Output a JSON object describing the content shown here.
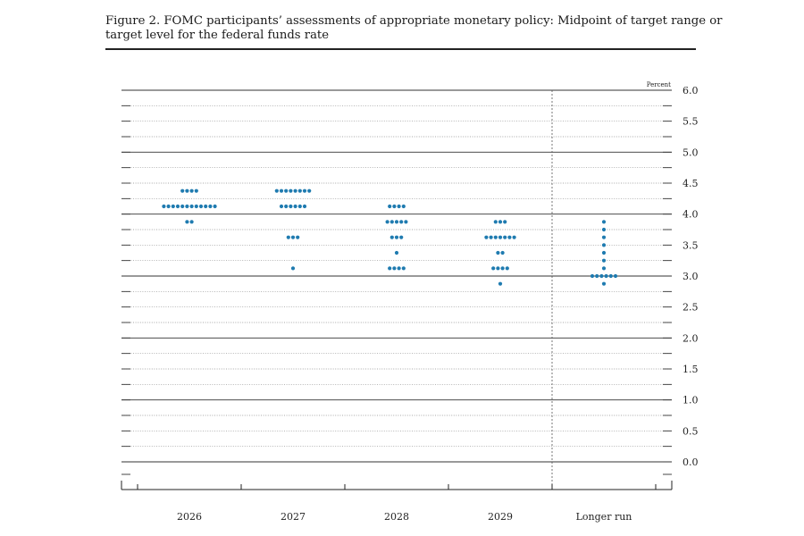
{
  "title": "Figure 2. FOMC participants’ assessments of appropriate monetary policy: Midpoint of target range or target level for the federal funds rate",
  "chart_data": {
    "type": "scatter",
    "title": "Figure 2. FOMC participants’ assessments of appropriate monetary policy: Midpoint of target range or target level for the federal funds rate",
    "ylabel": "Percent",
    "xlabel": "",
    "ylim": [
      0.0,
      6.0
    ],
    "y_ticks": [
      "6.0",
      "5.5",
      "5.0",
      "4.5",
      "4.0",
      "3.5",
      "3.0",
      "2.5",
      "2.0",
      "1.5",
      "1.0",
      "0.5",
      "0.0"
    ],
    "categories": [
      "2026",
      "2027",
      "2028",
      "2029",
      "Longer run"
    ],
    "grid": true,
    "dot_color": "#1f7bb0",
    "series": [
      {
        "category": "2026",
        "points": [
          {
            "y": 4.375,
            "count": 4
          },
          {
            "y": 4.125,
            "count": 12
          },
          {
            "y": 3.875,
            "count": 2
          }
        ]
      },
      {
        "category": "2027",
        "points": [
          {
            "y": 4.375,
            "count": 8
          },
          {
            "y": 4.125,
            "count": 6
          },
          {
            "y": 3.625,
            "count": 3
          },
          {
            "y": 3.125,
            "count": 1
          }
        ]
      },
      {
        "category": "2028",
        "points": [
          {
            "y": 4.125,
            "count": 4
          },
          {
            "y": 3.875,
            "count": 5
          },
          {
            "y": 3.625,
            "count": 3
          },
          {
            "y": 3.375,
            "count": 1
          },
          {
            "y": 3.125,
            "count": 4
          }
        ]
      },
      {
        "category": "2029",
        "points": [
          {
            "y": 3.875,
            "count": 3
          },
          {
            "y": 3.625,
            "count": 7
          },
          {
            "y": 3.375,
            "count": 2
          },
          {
            "y": 3.125,
            "count": 4
          },
          {
            "y": 2.875,
            "count": 1
          }
        ]
      },
      {
        "category": "Longer run",
        "points": [
          {
            "y": 3.875,
            "count": 1
          },
          {
            "y": 3.75,
            "count": 1
          },
          {
            "y": 3.625,
            "count": 1
          },
          {
            "y": 3.5,
            "count": 1
          },
          {
            "y": 3.375,
            "count": 1
          },
          {
            "y": 3.25,
            "count": 1
          },
          {
            "y": 3.125,
            "count": 1
          },
          {
            "y": 3.0,
            "count": 6
          },
          {
            "y": 2.875,
            "count": 1
          }
        ]
      }
    ]
  }
}
